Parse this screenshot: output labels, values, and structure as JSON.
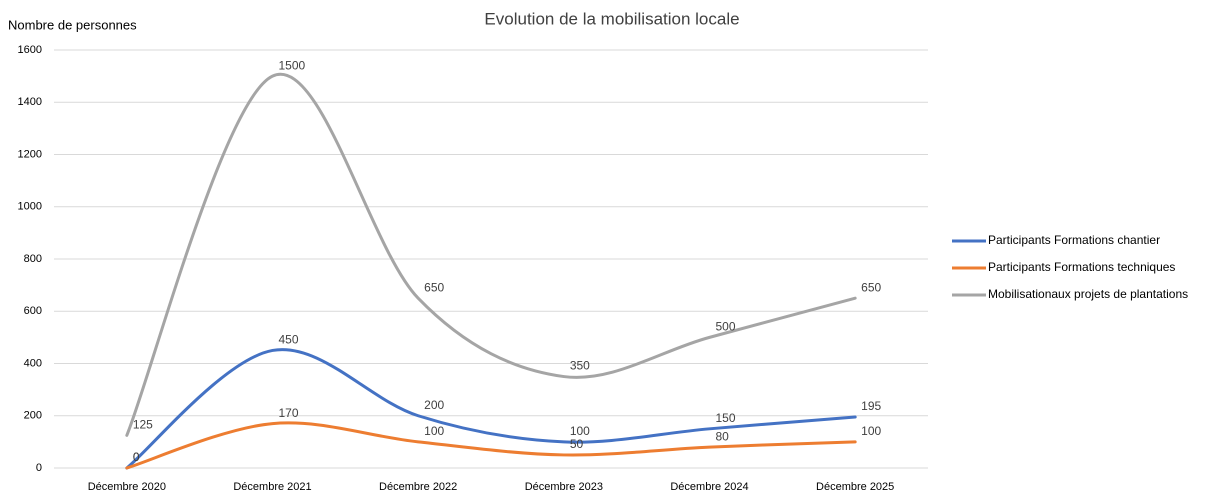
{
  "chart_data": {
    "type": "line",
    "title": "Evolution de la mobilisation locale",
    "y_label": "Nombre de personnes",
    "categories": [
      "Décembre 2020",
      "Décembre 2021",
      "Décembre 2022",
      "Décembre 2023",
      "Décembre 2024",
      "Décembre 2025"
    ],
    "series": [
      {
        "name": "Participants Formations chantier",
        "color": "#4472c4",
        "values": [
          0,
          450,
          200,
          100,
          150,
          195
        ]
      },
      {
        "name": "Participants Formations techniques",
        "color": "#ed7d31",
        "values": [
          0,
          170,
          100,
          50,
          80,
          100
        ]
      },
      {
        "name": "Mobilisationaux projets de plantations",
        "color": "#a5a5a5",
        "values": [
          125,
          1500,
          650,
          350,
          500,
          650
        ]
      }
    ],
    "ylim": [
      0,
      1600
    ],
    "yticks": [
      0,
      200,
      400,
      600,
      800,
      1000,
      1200,
      1400,
      1600
    ],
    "grid": true,
    "smooth": true,
    "legend": "right"
  }
}
